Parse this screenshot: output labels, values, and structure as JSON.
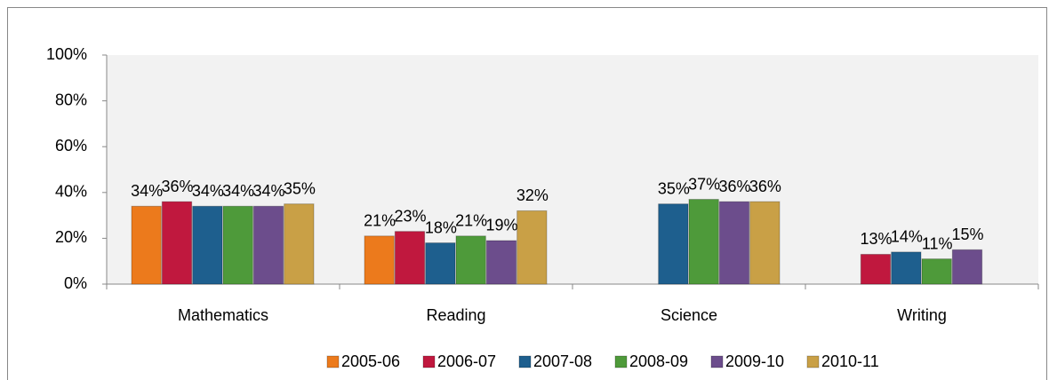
{
  "chart_data": {
    "type": "bar",
    "categories": [
      "Mathematics",
      "Reading",
      "Science",
      "Writing"
    ],
    "series": [
      {
        "name": "2005-06",
        "color": "#ec7a1c",
        "values": [
          34,
          21,
          null,
          null
        ],
        "value_labels": [
          "34%",
          "21%",
          null,
          null
        ]
      },
      {
        "name": "2006-07",
        "color": "#c0183e",
        "values": [
          36,
          23,
          null,
          13
        ],
        "value_labels": [
          "36%",
          "23%",
          null,
          "13%"
        ]
      },
      {
        "name": "2007-08",
        "color": "#1e5f8e",
        "values": [
          34,
          18,
          35,
          14
        ],
        "value_labels": [
          "34%",
          "18%",
          "35%",
          "14%"
        ]
      },
      {
        "name": "2008-09",
        "color": "#4e9a3a",
        "values": [
          34,
          21,
          37,
          11
        ],
        "value_labels": [
          "34%",
          "21%",
          "37%",
          "11%"
        ]
      },
      {
        "name": "2009-10",
        "color": "#6c4d8c",
        "values": [
          34,
          19,
          36,
          15
        ],
        "value_labels": [
          "34%",
          "19%",
          "36%",
          "15%"
        ]
      },
      {
        "name": "2010-11",
        "color": "#c9a046",
        "values": [
          35,
          32,
          36,
          null
        ],
        "value_labels": [
          "35%",
          "32%",
          "36%",
          null
        ]
      }
    ],
    "ylim": [
      0,
      100
    ],
    "yticks": [
      {
        "value": 0,
        "label": "0%"
      },
      {
        "value": 20,
        "label": "20%"
      },
      {
        "value": 40,
        "label": "40%"
      },
      {
        "value": 60,
        "label": "60%"
      },
      {
        "value": 80,
        "label": "80%"
      },
      {
        "value": 100,
        "label": "100%"
      }
    ],
    "grid": false,
    "legend": "bottom"
  }
}
